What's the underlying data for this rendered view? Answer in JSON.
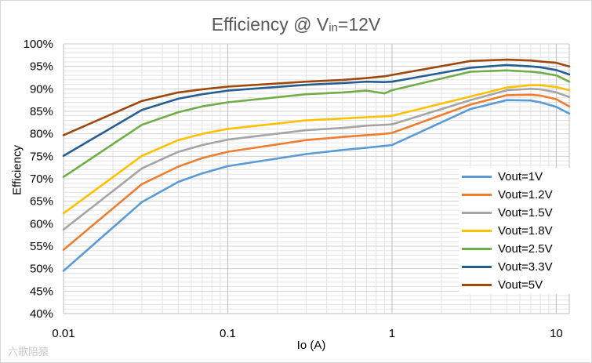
{
  "chart_data": {
    "type": "line",
    "title_main": "Efficiency @ V",
    "title_sub": "in",
    "title_tail": "=12V",
    "xlabel": "Io (A)",
    "ylabel": "Efficiency",
    "xscale": "log",
    "xlim": [
      0.01,
      12
    ],
    "ylim": [
      40,
      100
    ],
    "yticks": [
      40,
      45,
      50,
      55,
      60,
      65,
      70,
      75,
      80,
      85,
      90,
      95,
      100
    ],
    "ytick_labels": [
      "40%",
      "45%",
      "50%",
      "55%",
      "60%",
      "65%",
      "70%",
      "75%",
      "80%",
      "85%",
      "90%",
      "95%",
      "100%"
    ],
    "xticks": [
      0.01,
      0.1,
      1,
      10
    ],
    "xtick_labels": [
      "0.01",
      "0.1",
      "1",
      "10"
    ],
    "grid": true,
    "legend_position": "bottom-right",
    "x": [
      0.01,
      0.03,
      0.05,
      0.07,
      0.1,
      0.3,
      0.5,
      0.7,
      0.9,
      1,
      3,
      5,
      7,
      8,
      10,
      12
    ],
    "series": [
      {
        "name": "Vout=1V",
        "color": "#5b9bd5",
        "values": [
          49.5,
          64.8,
          69.3,
          71.2,
          72.8,
          75.5,
          76.4,
          76.9,
          77.3,
          77.5,
          85.5,
          87.5,
          87.4,
          87.0,
          86.0,
          84.5
        ]
      },
      {
        "name": "Vout=1.2V",
        "color": "#ed7d31",
        "values": [
          54.2,
          68.8,
          72.7,
          74.6,
          76.0,
          78.6,
          79.3,
          79.7,
          80.0,
          80.2,
          86.5,
          88.6,
          88.7,
          88.5,
          87.7,
          86.1
        ]
      },
      {
        "name": "Vout=1.5V",
        "color": "#a5a5a5",
        "values": [
          58.7,
          72.3,
          76.0,
          77.5,
          78.7,
          80.8,
          81.3,
          81.8,
          82.0,
          82.1,
          87.5,
          89.7,
          90.0,
          89.9,
          89.2,
          88.2
        ]
      },
      {
        "name": "Vout=1.8V",
        "color": "#ffc000",
        "values": [
          62.3,
          75.1,
          78.6,
          80.0,
          81.1,
          83.0,
          83.4,
          83.7,
          83.9,
          84.0,
          88.3,
          90.3,
          90.8,
          90.8,
          90.4,
          89.7
        ]
      },
      {
        "name": "Vout=2.5V",
        "color": "#70ad47",
        "values": [
          70.4,
          82.0,
          84.8,
          86.1,
          87.0,
          88.8,
          89.2,
          89.6,
          89.0,
          89.7,
          93.8,
          94.1,
          93.8,
          93.6,
          93.0,
          91.6
        ]
      },
      {
        "name": "Vout=3.3V",
        "color": "#255e91",
        "values": [
          75.1,
          85.3,
          87.8,
          88.8,
          89.6,
          90.9,
          91.3,
          91.6,
          91.5,
          91.6,
          94.7,
          95.3,
          95.0,
          94.8,
          94.2,
          93.2
        ]
      },
      {
        "name": "Vout=5V",
        "color": "#9e480e",
        "values": [
          79.7,
          87.3,
          89.2,
          89.9,
          90.5,
          91.6,
          92.0,
          92.4,
          92.8,
          93.1,
          96.2,
          96.5,
          96.3,
          96.1,
          95.8,
          95.0
        ]
      }
    ]
  },
  "watermark": "六歌陪猿"
}
